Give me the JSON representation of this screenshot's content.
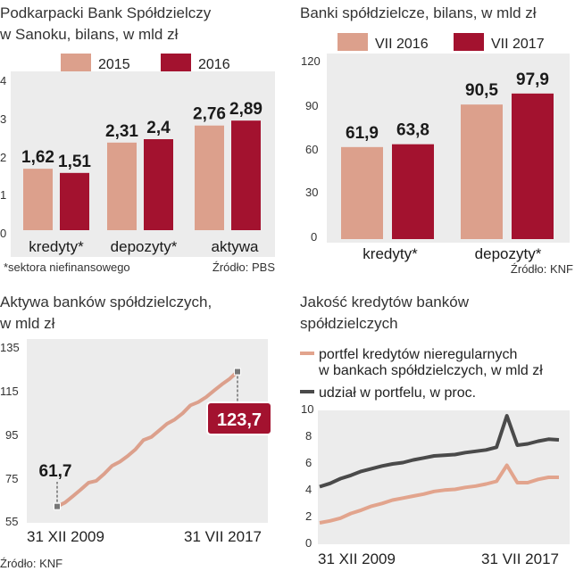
{
  "colors": {
    "panel": "#ececec",
    "salmon": "#dca08c",
    "crimson": "#a3122f",
    "dark": "#4a4a4a",
    "line_salmon": "#e2a48d"
  },
  "chart_data": [
    {
      "type": "bar",
      "title_line1": "Podkarpacki Bank Spółdzielczy",
      "title_line2": "w Sanoku, bilans, w mld zł",
      "categories": [
        "kredyty*",
        "depozyty*",
        "aktywa"
      ],
      "series": [
        {
          "name": "2015",
          "values": [
            1.62,
            2.31,
            2.76
          ],
          "labels": [
            "1,62",
            "2,31",
            "2,76"
          ]
        },
        {
          "name": "2016",
          "values": [
            1.51,
            2.4,
            2.89
          ],
          "labels": [
            "1,51",
            "2,4",
            "2,89"
          ]
        }
      ],
      "ylim": [
        0,
        4
      ],
      "yticks": [
        0,
        1,
        2,
        3,
        4
      ],
      "footnote": "*sektora niefinansowego",
      "source": "Źródło: PBS"
    },
    {
      "type": "bar",
      "title": "Banki spółdzielcze, bilans, w mld zł",
      "categories": [
        "kredyty*",
        "depozyty*"
      ],
      "series": [
        {
          "name": "VII 2016",
          "values": [
            61.9,
            90.5
          ],
          "labels": [
            "61,9",
            "90,5"
          ]
        },
        {
          "name": "VII 2017",
          "values": [
            63.8,
            97.9
          ],
          "labels": [
            "63,8",
            "97,9"
          ]
        }
      ],
      "ylim": [
        0,
        120
      ],
      "yticks": [
        0,
        30,
        60,
        90,
        120
      ],
      "source": "Źródło: KNF"
    },
    {
      "type": "line",
      "title_line1": "Aktywa banków spółdzielczych,",
      "title_line2": "w mld zł",
      "x_start_label": "31 XII 2009",
      "x_end_label": "31 VII 2017",
      "ylim": [
        55,
        135
      ],
      "yticks": [
        55,
        75,
        95,
        115,
        135
      ],
      "start_value": 61.7,
      "start_label": "61,7",
      "end_value": 123.7,
      "end_label": "123,7",
      "series": [
        {
          "name": "aktywa",
          "values": [
            61.7,
            63.5,
            66.4,
            69.4,
            72.6,
            73.5,
            76.7,
            80.4,
            82.3,
            84.9,
            88.0,
            92.2,
            93.6,
            96.6,
            99.7,
            101.7,
            104.5,
            108.2,
            109.7,
            112.0,
            115.0,
            117.8,
            120.4,
            123.7
          ]
        }
      ],
      "source": "Źródło: KNF"
    },
    {
      "type": "line",
      "title_line1": "Jakość kredytów banków",
      "title_line2": "spółdzielczych",
      "x_start_label": "31 XII 2009",
      "x_end_label": "31 VII 2017",
      "ylim": [
        0,
        10
      ],
      "yticks": [
        0,
        2,
        4,
        6,
        8,
        10
      ],
      "legend": [
        {
          "name": "portfel kredytów nieregularnych",
          "name_line2": "w bankach spółdzielczych, w mld zł",
          "color_key": "line_salmon"
        },
        {
          "name": "udział w portfelu, w proc.",
          "color_key": "dark"
        }
      ],
      "series": [
        {
          "name": "portfel kredytów nieregularnych w bankach spółdzielczych, w mld zł",
          "values": [
            1.6,
            1.75,
            1.95,
            2.3,
            2.55,
            2.85,
            3.05,
            3.3,
            3.45,
            3.6,
            3.75,
            3.95,
            4.05,
            4.1,
            4.25,
            4.35,
            4.5,
            4.7,
            5.9,
            4.6,
            4.6,
            4.85,
            5.0,
            5.0
          ]
        },
        {
          "name": "udział w portfelu, w proc.",
          "values": [
            4.3,
            4.55,
            4.9,
            5.15,
            5.45,
            5.65,
            5.85,
            6.0,
            6.1,
            6.3,
            6.45,
            6.6,
            6.65,
            6.7,
            6.85,
            6.95,
            7.05,
            7.25,
            9.6,
            7.4,
            7.5,
            7.7,
            7.85,
            7.8
          ]
        }
      ],
      "source": ""
    }
  ]
}
